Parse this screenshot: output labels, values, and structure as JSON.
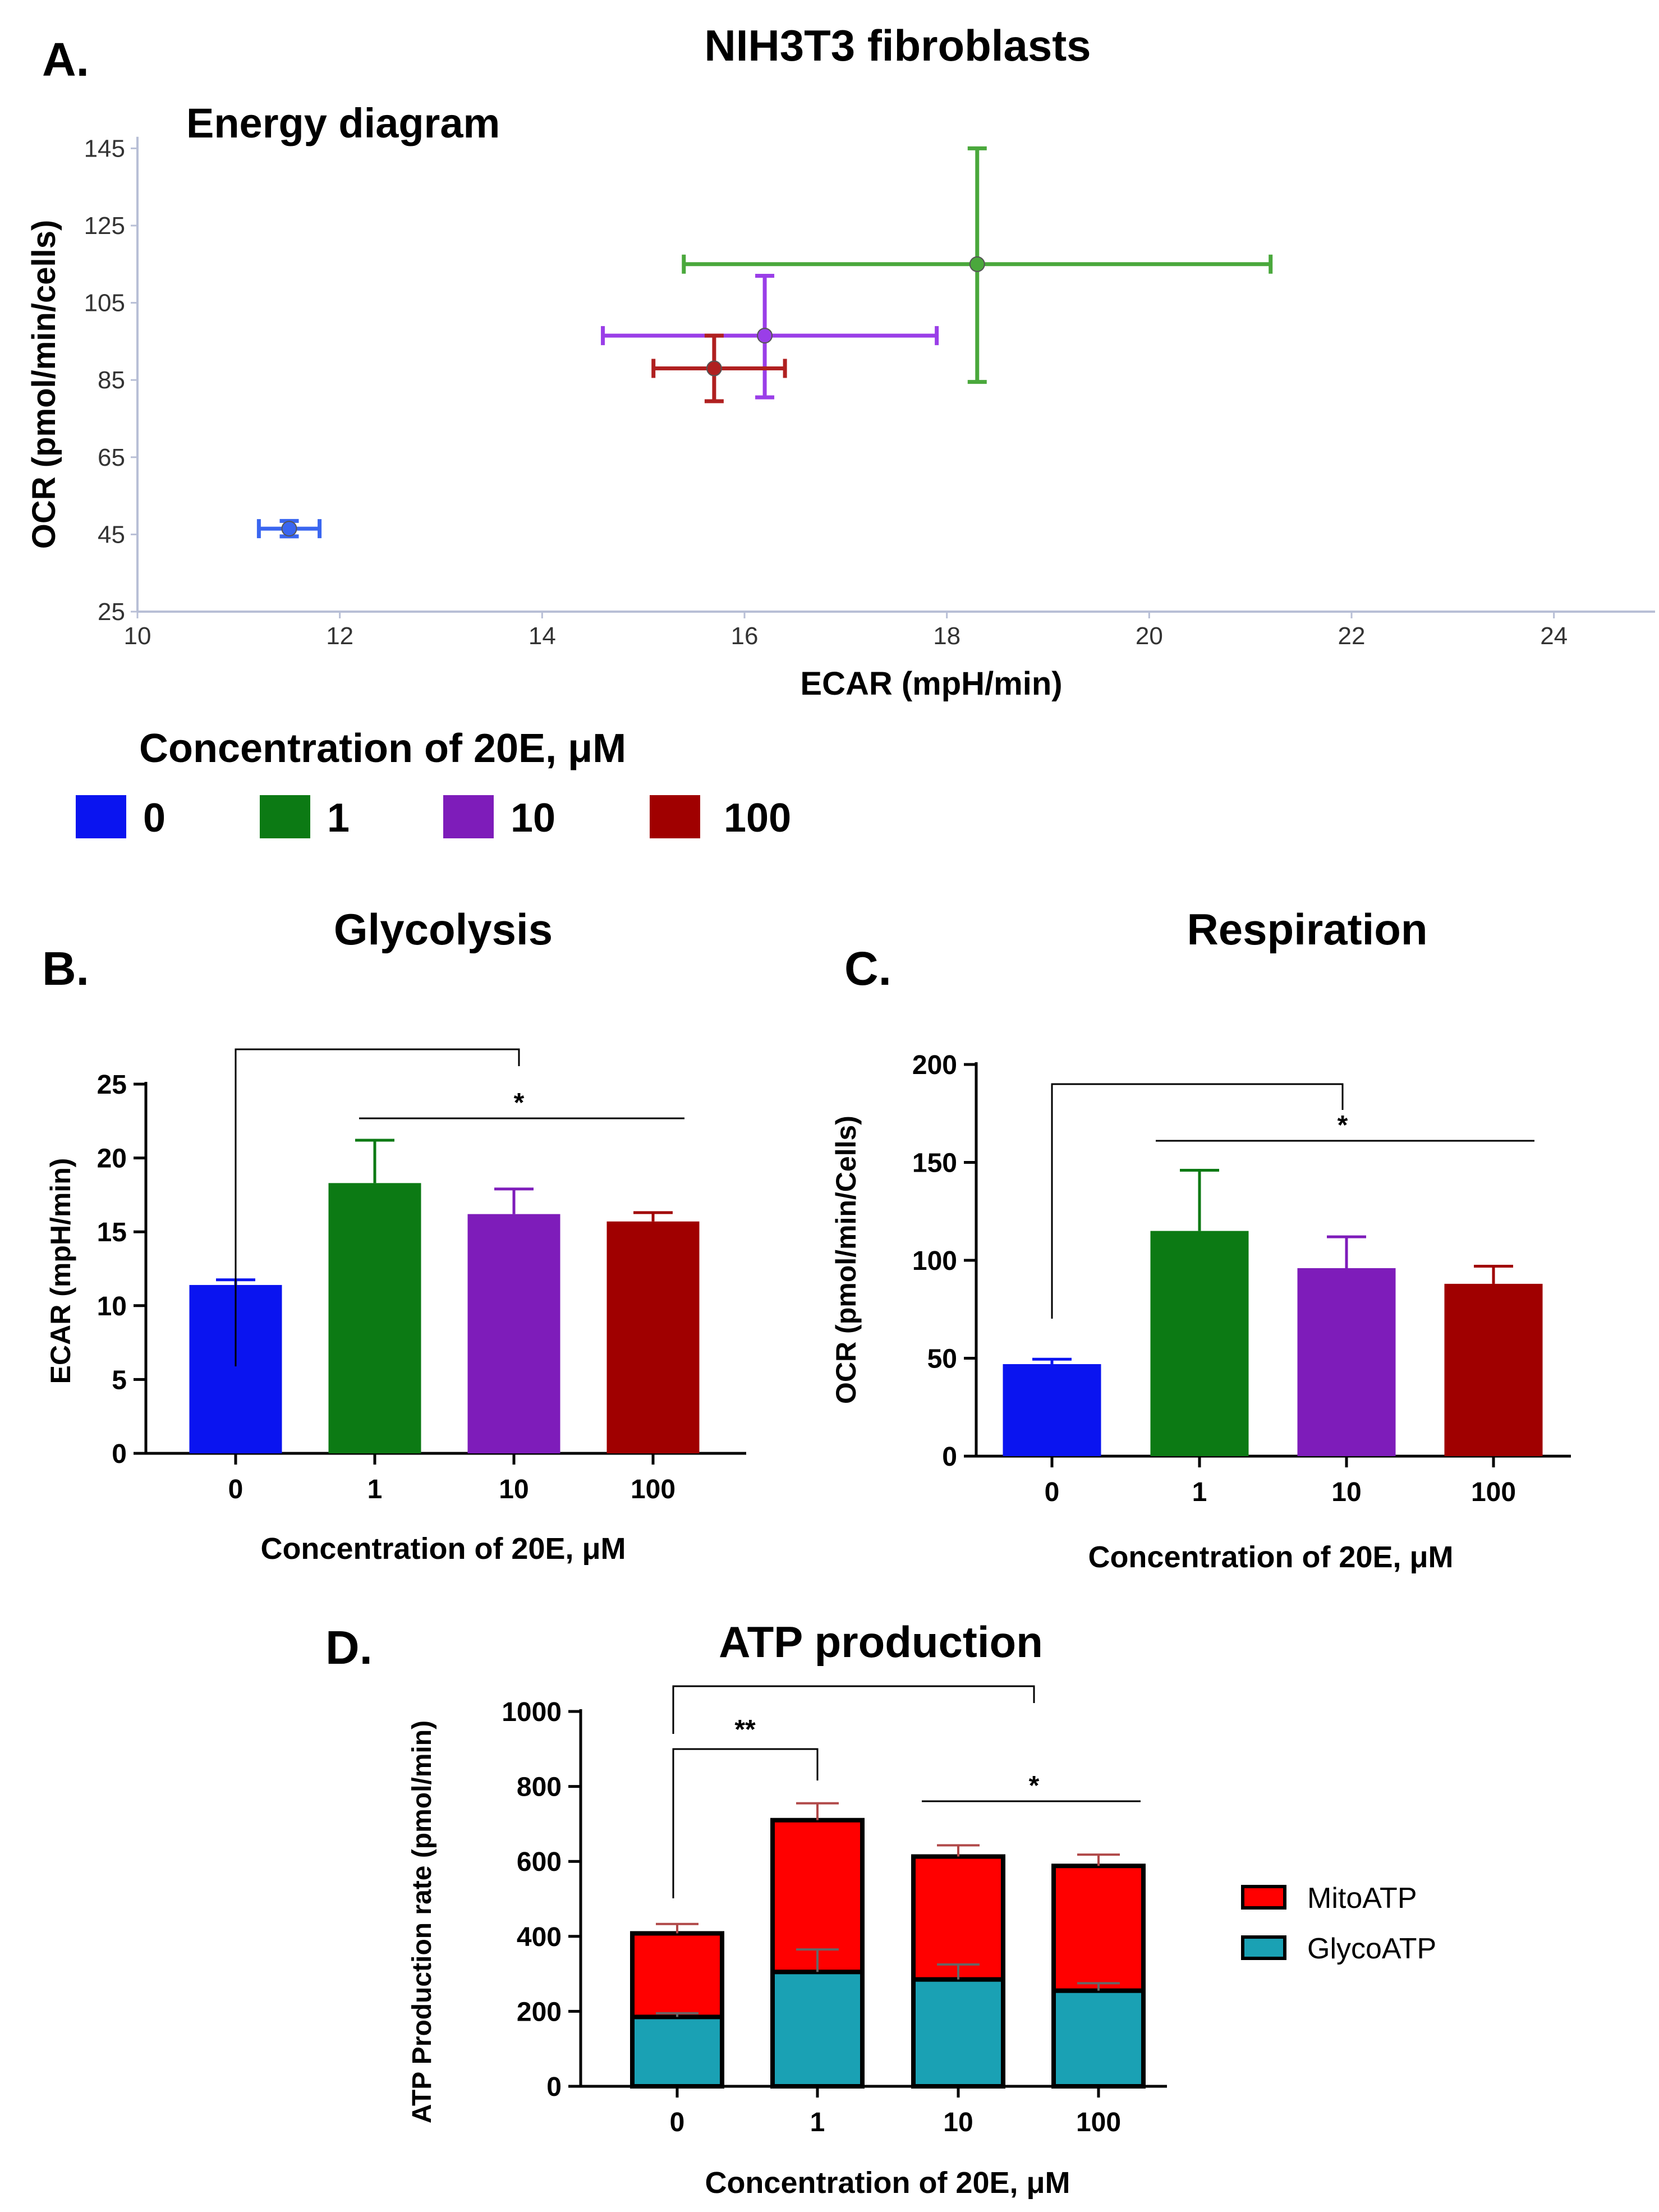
{
  "figure_title": "NIH3T3 fibroblasts",
  "legend": {
    "title": "Concentration of 20E, μM",
    "items": [
      {
        "label": "0",
        "color": "#0a14f0"
      },
      {
        "label": "1",
        "color": "#0c7a14"
      },
      {
        "label": "10",
        "color": "#7e1cba"
      },
      {
        "label": "100",
        "color": "#a00000"
      }
    ]
  },
  "chart_data": [
    {
      "panel": "A.",
      "type": "scatter",
      "title": "Energy diagram",
      "xlabel": "ECAR (mpH/min)",
      "ylabel": "OCR (pmol/min/cells)",
      "xlim": [
        10,
        25
      ],
      "ylim": [
        25,
        150
      ],
      "xticks": [
        "10",
        "12",
        "14",
        "16",
        "18",
        "20",
        "22",
        "24"
      ],
      "yticks": [
        "25",
        "45",
        "65",
        "85",
        "105",
        "125",
        "145"
      ],
      "points": [
        {
          "label": "0",
          "color": "#3a66f0",
          "x": 11.5,
          "y": 46.5,
          "x_err": [
            11.2,
            11.8
          ],
          "y_err": [
            44.5,
            48.5
          ]
        },
        {
          "label": "1",
          "color": "#4aa83c",
          "x": 18.3,
          "y": 115,
          "x_err": [
            15.4,
            21.2
          ],
          "y_err": [
            84.5,
            145
          ]
        },
        {
          "label": "10",
          "color": "#9a3ee8",
          "x": 16.2,
          "y": 96.5,
          "x_err": [
            14.6,
            17.9
          ],
          "y_err": [
            80.5,
            112
          ]
        },
        {
          "label": "100",
          "color": "#b02020",
          "x": 15.7,
          "y": 88,
          "x_err": [
            15.1,
            16.4
          ],
          "y_err": [
            79.5,
            96.5
          ]
        }
      ]
    },
    {
      "panel": "B.",
      "type": "bar",
      "title": "Glycolysis",
      "xlabel": "Concentration of 20E, μM",
      "ylabel": "ECAR (mpH/min)",
      "ylim": [
        0,
        25
      ],
      "yticks": [
        "0",
        "5",
        "10",
        "15",
        "20",
        "25"
      ],
      "categories": [
        "0",
        "1",
        "10",
        "100"
      ],
      "values": [
        11.4,
        18.3,
        16.2,
        15.7
      ],
      "errors": [
        0.35,
        2.9,
        1.7,
        0.6
      ],
      "colors": [
        "#0a14f0",
        "#0c7a14",
        "#7e1cba",
        "#a00000"
      ],
      "significance": "*"
    },
    {
      "panel": "C.",
      "type": "bar",
      "title": "Respiration",
      "xlabel": "Concentration of 20E, μM",
      "ylabel": "OCR (pmol/min/Cells)",
      "ylim": [
        0,
        200
      ],
      "yticks": [
        "0",
        "50",
        "100",
        "150",
        "200"
      ],
      "categories": [
        "0",
        "1",
        "10",
        "100"
      ],
      "values": [
        47,
        115,
        96,
        88
      ],
      "errors": [
        2.5,
        31,
        16,
        9
      ],
      "colors": [
        "#0a14f0",
        "#0c7a14",
        "#7e1cba",
        "#a00000"
      ],
      "significance": "*"
    },
    {
      "panel": "D.",
      "type": "bar",
      "stacked": true,
      "title": "ATP production",
      "xlabel": "Concentration of 20E, μM",
      "ylabel": "ATP Production rate (pmol/min)",
      "ylim": [
        0,
        1000
      ],
      "yticks": [
        "0",
        "200",
        "400",
        "600",
        "800",
        "1000"
      ],
      "categories": [
        "0",
        "1",
        "10",
        "100"
      ],
      "series": [
        {
          "name": "GlycoATP",
          "color": "#1aa1b4",
          "values": [
            185,
            305,
            285,
            255
          ],
          "errors": [
            10,
            60,
            40,
            20
          ]
        },
        {
          "name": "MitoATP",
          "color": "#ff0000",
          "values": [
            223,
            405,
            328,
            333
          ],
          "errors": [
            25,
            45,
            30,
            30
          ]
        }
      ],
      "significance": [
        "**",
        "*"
      ]
    }
  ]
}
